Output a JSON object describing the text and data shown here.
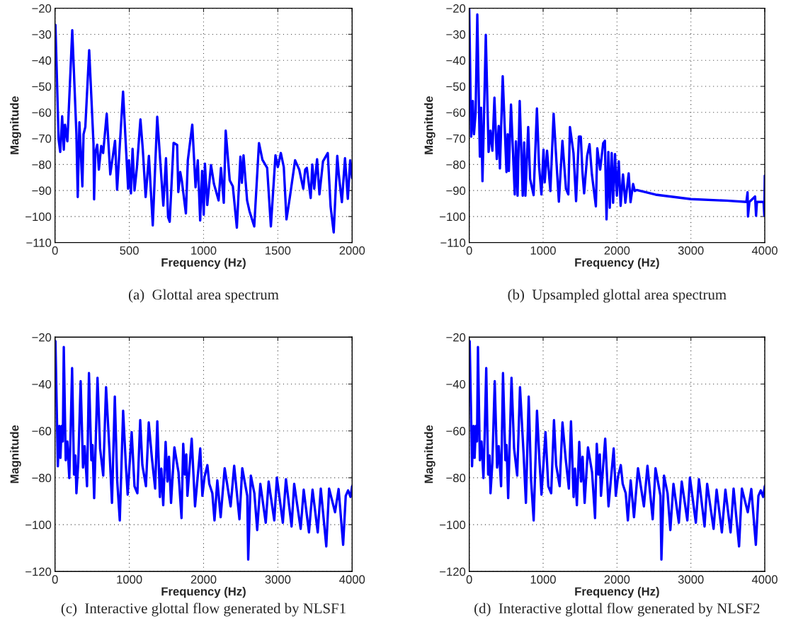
{
  "chart_data": [
    {
      "type": "line",
      "xlabel": "Frequency (Hz)",
      "ylabel": "Magnitude",
      "xlim": [
        0,
        2000
      ],
      "xticks": [
        0,
        500,
        1000,
        1500,
        2000
      ],
      "ylim": [
        -110,
        -20
      ],
      "yticks": [
        -110,
        -100,
        -90,
        -80,
        -70,
        -60,
        -50,
        -40,
        -30,
        -20
      ],
      "grid": true,
      "annotations": [
        "(a)  Glottal area spectrum"
      ],
      "series": [
        {
          "color": "#0000ff",
          "x": [
            3,
            24,
            35,
            48,
            59,
            67,
            83,
            89,
            116,
            144,
            153,
            164,
            176,
            184,
            192,
            204,
            230,
            259,
            263,
            271,
            284,
            295,
            311,
            324,
            348,
            372,
            404,
            418,
            431,
            458,
            492,
            498,
            511,
            522,
            535,
            551,
            575,
            591,
            610,
            632,
            658,
            688,
            729,
            747,
            761,
            772,
            798,
            822,
            830,
            843,
            854,
            881,
            894,
            924,
            946,
            961,
            977,
            990,
            1001,
            1009,
            1025,
            1050,
            1070,
            1101,
            1117,
            1136,
            1149,
            1176,
            1197,
            1224,
            1248,
            1258,
            1269,
            1293,
            1309,
            1341,
            1373,
            1396,
            1428,
            1453,
            1484,
            1500,
            1520,
            1540,
            1558,
            1580,
            1616,
            1644,
            1671,
            1684,
            1695,
            1721,
            1732,
            1745,
            1764,
            1780,
            1804,
            1836,
            1855,
            1876,
            1900,
            1910,
            1931,
            1952,
            1971,
            1987,
            2000
          ],
          "values": [
            -26.4,
            -70.2,
            -75.2,
            -61.5,
            -74.3,
            -64.7,
            -71.1,
            -63.8,
            -28.4,
            -68.4,
            -92.5,
            -63.8,
            -78.4,
            -88.4,
            -68.4,
            -65.6,
            -36.1,
            -72,
            -93.4,
            -75.6,
            -72.4,
            -82,
            -72.9,
            -75.6,
            -60.5,
            -83.8,
            -70.9,
            -89.7,
            -77.5,
            -52,
            -89.3,
            -78.4,
            -91.1,
            -74,
            -90,
            -81.3,
            -62.7,
            -74.3,
            -92.5,
            -76.7,
            -103.4,
            -61.7,
            -95.8,
            -77.6,
            -100.2,
            -102,
            -71.7,
            -72.5,
            -90.6,
            -82.9,
            -86.4,
            -98.8,
            -78.4,
            -64.7,
            -88.8,
            -78.4,
            -101.5,
            -82.5,
            -99.3,
            -79.7,
            -95.6,
            -80.2,
            -87.5,
            -93.8,
            -81.3,
            -94.7,
            -67,
            -86.1,
            -88.4,
            -104.3,
            -77,
            -87,
            -76.5,
            -93.8,
            -97.9,
            -103.8,
            -71.8,
            -78.2,
            -81.3,
            -103.8,
            -76.5,
            -81,
            -75.6,
            -81,
            -101.1,
            -92.9,
            -78.4,
            -82,
            -89.3,
            -82,
            -81.3,
            -92.9,
            -80,
            -89.3,
            -78,
            -91.5,
            -78.8,
            -75.6,
            -96.1,
            -106.1,
            -76.7,
            -83.8,
            -94.5,
            -77.6,
            -93.2,
            -78.4,
            -85.2
          ]
        }
      ]
    },
    {
      "type": "line",
      "xlabel": "Frequency (Hz)",
      "ylabel": "Magnitude",
      "xlim": [
        0,
        4000
      ],
      "xticks": [
        0,
        1000,
        2000,
        3000,
        4000
      ],
      "ylim": [
        -110,
        -20
      ],
      "yticks": [
        -110,
        -100,
        -90,
        -80,
        -70,
        -60,
        -50,
        -40,
        -30,
        -20
      ],
      "grid": true,
      "annotations": [
        "(b)  Upsampled glottal area spectrum"
      ],
      "series": [
        {
          "color": "#0000ff",
          "x": [
            0,
            26,
            48,
            64,
            86,
            109,
            144,
            160,
            179,
            198,
            224,
            262,
            287,
            313,
            341,
            373,
            399,
            415,
            453,
            504,
            520,
            536,
            565,
            616,
            632,
            654,
            683,
            724,
            743,
            760,
            798,
            824,
            871,
            916,
            945,
            977,
            1005,
            1021,
            1053,
            1098,
            1142,
            1181,
            1213,
            1261,
            1309,
            1341,
            1363,
            1411,
            1446,
            1484,
            1510,
            1532,
            1555,
            1596,
            1628,
            1660,
            1714,
            1733,
            1772,
            1813,
            1836,
            1858,
            1883,
            1902,
            1928,
            1947,
            1973,
            1998,
            2024,
            2049,
            2081,
            2113,
            2158,
            2183,
            2218,
            2241,
            2267,
            2522,
            3001,
            3479,
            3751,
            3767,
            3773,
            3792,
            3869,
            3882,
            3894,
            3984,
            3994,
            4000
          ],
          "values": [
            -20,
            -69.3,
            -55.6,
            -68.4,
            -60.2,
            -22.4,
            -77,
            -58.2,
            -86.4,
            -63.8,
            -30.2,
            -75.2,
            -67,
            -74.7,
            -54.3,
            -77.9,
            -65.2,
            -81.5,
            -46.1,
            -82.9,
            -68.4,
            -82.5,
            -57,
            -91.5,
            -71.1,
            -92,
            -55.6,
            -92,
            -71.5,
            -92,
            -65.6,
            -85.6,
            -91.8,
            -58.5,
            -80.6,
            -91.5,
            -74.3,
            -86.9,
            -74.7,
            -90.2,
            -60.5,
            -79.3,
            -94.3,
            -70.9,
            -89.3,
            -91.5,
            -65.6,
            -75.6,
            -94.1,
            -69.3,
            -69.3,
            -82.9,
            -91.1,
            -76.7,
            -72.2,
            -83.8,
            -96.1,
            -73.8,
            -82,
            -71.8,
            -70.9,
            -101.1,
            -75.2,
            -96.6,
            -75.6,
            -94.7,
            -76,
            -92,
            -78.8,
            -95.9,
            -83.8,
            -94.7,
            -83.4,
            -94.5,
            -87.5,
            -90.2,
            -89.8,
            -91.6,
            -93.3,
            -93.9,
            -94.4,
            -90.7,
            -100,
            -94.4,
            -92.3,
            -99.7,
            -94.4,
            -94.4,
            -99.7,
            -84.3
          ]
        }
      ]
    },
    {
      "type": "line",
      "xlabel": "Frequency (Hz)",
      "ylabel": "Magnitude",
      "xlim": [
        0,
        4000
      ],
      "xticks": [
        0,
        1000,
        2000,
        3000,
        4000
      ],
      "ylim": [
        -120,
        -20
      ],
      "yticks": [
        -120,
        -100,
        -80,
        -60,
        -40,
        -20
      ],
      "grid": true,
      "annotations": [
        "(c)  Interactive glottal flow generated by NLSF1"
      ],
      "series": [
        {
          "color": "#0000ff",
          "x": [
            6,
            38,
            58,
            73,
            89,
            105,
            118,
            144,
            166,
            192,
            208,
            230,
            256,
            275,
            288,
            313,
            345,
            377,
            399,
            431,
            457,
            489,
            505,
            527,
            572,
            607,
            649,
            687,
            735,
            767,
            805,
            837,
            872,
            917,
            952,
            978,
            1032,
            1070,
            1109,
            1147,
            1176,
            1224,
            1262,
            1304,
            1348,
            1377,
            1412,
            1431,
            1457,
            1489,
            1514,
            1534,
            1562,
            1607,
            1662,
            1703,
            1726,
            1748,
            1767,
            1783,
            1840,
            1885,
            1955,
            1984,
            2013,
            2051,
            2077,
            2118,
            2147,
            2185,
            2230,
            2284,
            2364,
            2412,
            2483,
            2521,
            2588,
            2601,
            2636,
            2684,
            2722,
            2764,
            2837,
            2876,
            2952,
            2987,
            3067,
            3109,
            3185,
            3220,
            3307,
            3348,
            3419,
            3467,
            3537,
            3578,
            3652,
            3690,
            3770,
            3818,
            3879,
            3914,
            3946,
            3978,
            4000
          ],
          "values": [
            -21.7,
            -75.1,
            -57.9,
            -71.5,
            -57.9,
            -64.5,
            -24.2,
            -72.5,
            -64.5,
            -80.1,
            -63,
            -33.2,
            -78.6,
            -70.5,
            -86.6,
            -73.6,
            -38.8,
            -75.6,
            -66.5,
            -83.6,
            -35.3,
            -72.5,
            -66,
            -88.7,
            -37.3,
            -67.5,
            -79.1,
            -41.3,
            -69.5,
            -90.7,
            -45.3,
            -81.1,
            -98.2,
            -51.4,
            -73.6,
            -87.2,
            -60.5,
            -83.6,
            -86.6,
            -55.4,
            -74.6,
            -83.6,
            -56.4,
            -71.5,
            -84.6,
            -55.9,
            -88.2,
            -76.1,
            -91.7,
            -64.7,
            -81.6,
            -71,
            -90.7,
            -67,
            -77.6,
            -97.2,
            -65.5,
            -78.6,
            -70,
            -87.7,
            -63.3,
            -92.2,
            -67.5,
            -87.7,
            -79.6,
            -74.6,
            -82.6,
            -86.6,
            -98.2,
            -81.1,
            -96.8,
            -75.9,
            -92.2,
            -74.9,
            -97.7,
            -75.9,
            -87.7,
            -114.9,
            -79.1,
            -86.6,
            -102.3,
            -82.6,
            -99.2,
            -81.6,
            -98.2,
            -79.9,
            -99.2,
            -80.6,
            -100.8,
            -82.6,
            -101.8,
            -85.1,
            -103.3,
            -85.1,
            -103.3,
            -84.6,
            -109.3,
            -84.6,
            -94.7,
            -84.8,
            -108.6,
            -87.7,
            -85.4,
            -88.2,
            -83.6
          ]
        }
      ]
    },
    {
      "type": "line",
      "xlabel": "Frequency (Hz)",
      "ylabel": "Magnitude",
      "xlim": [
        0,
        4000
      ],
      "xticks": [
        0,
        1000,
        2000,
        3000,
        4000
      ],
      "ylim": [
        -120,
        -20
      ],
      "yticks": [
        -120,
        -100,
        -80,
        -60,
        -40,
        -20
      ],
      "grid": true,
      "annotations": [
        "(d)  Interactive glottal flow generated by NLSF2"
      ],
      "series": [
        {
          "color": "#0000ff",
          "x": [
            6,
            38,
            58,
            73,
            89,
            105,
            118,
            144,
            166,
            192,
            208,
            230,
            256,
            275,
            288,
            313,
            345,
            377,
            399,
            431,
            457,
            489,
            505,
            527,
            572,
            607,
            649,
            687,
            735,
            767,
            805,
            837,
            872,
            917,
            952,
            978,
            1032,
            1070,
            1109,
            1147,
            1176,
            1224,
            1262,
            1304,
            1348,
            1377,
            1412,
            1431,
            1457,
            1489,
            1514,
            1534,
            1562,
            1607,
            1662,
            1703,
            1726,
            1748,
            1767,
            1783,
            1840,
            1885,
            1955,
            1984,
            2013,
            2051,
            2077,
            2118,
            2147,
            2185,
            2230,
            2284,
            2364,
            2412,
            2483,
            2521,
            2588,
            2601,
            2636,
            2684,
            2722,
            2764,
            2837,
            2876,
            2952,
            2987,
            3067,
            3109,
            3185,
            3220,
            3307,
            3348,
            3419,
            3467,
            3537,
            3578,
            3652,
            3690,
            3770,
            3818,
            3879,
            3914,
            3946,
            3978,
            4000
          ],
          "values": [
            -21.7,
            -75.1,
            -57.9,
            -71.5,
            -57.9,
            -64.5,
            -24.2,
            -72.5,
            -64.5,
            -80.1,
            -63,
            -33.2,
            -78.6,
            -70.5,
            -86.6,
            -73.6,
            -38.8,
            -75.6,
            -66.5,
            -83.6,
            -35.3,
            -72.5,
            -66,
            -88.7,
            -37.3,
            -67.5,
            -79.1,
            -41.3,
            -69.5,
            -90.7,
            -45.3,
            -81.1,
            -98.2,
            -51.4,
            -73.6,
            -87.2,
            -60.5,
            -83.6,
            -86.6,
            -55.4,
            -74.6,
            -83.6,
            -56.4,
            -71.5,
            -84.6,
            -55.9,
            -88.2,
            -76.1,
            -91.7,
            -64.7,
            -81.6,
            -71,
            -90.7,
            -67,
            -77.6,
            -97.2,
            -65.5,
            -78.6,
            -70,
            -87.7,
            -63.3,
            -92.2,
            -67.5,
            -87.7,
            -79.6,
            -74.6,
            -82.6,
            -86.6,
            -98.2,
            -81.1,
            -96.8,
            -75.9,
            -92.2,
            -74.9,
            -97.7,
            -75.9,
            -87.7,
            -114.9,
            -79.1,
            -86.6,
            -102.3,
            -82.6,
            -99.2,
            -81.6,
            -98.2,
            -79.9,
            -99.2,
            -80.6,
            -100.8,
            -82.6,
            -101.8,
            -85.1,
            -103.3,
            -85.1,
            -103.3,
            -84.6,
            -109.3,
            -84.6,
            -94.7,
            -84.8,
            -108.6,
            -87.7,
            -85.4,
            -88.2,
            -83.6
          ]
        }
      ]
    }
  ]
}
